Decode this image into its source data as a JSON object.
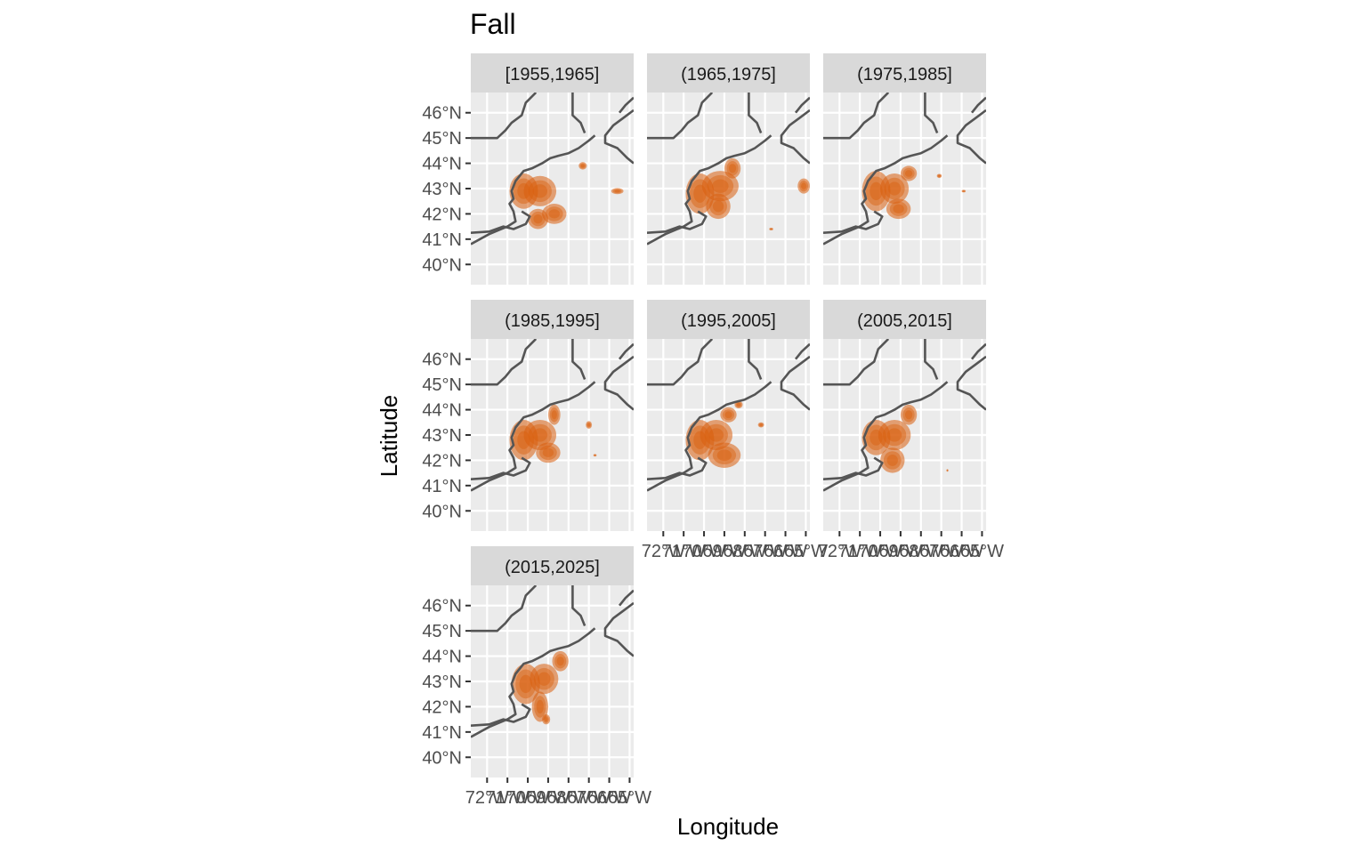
{
  "chart_data": {
    "type": "heatmap",
    "title": "Fall",
    "xlabel": "Longitude",
    "ylabel": "Latitude",
    "x_tick_labels": [
      "72°W",
      "71°W",
      "70°W",
      "69°W",
      "68°W",
      "67°W",
      "66°W",
      "65°W"
    ],
    "y_tick_labels": [
      "46°N",
      "45°N",
      "44°N",
      "43°N",
      "42°N",
      "41°N",
      "40°N"
    ],
    "x_ticks": [
      -72,
      -71,
      -70,
      -69,
      -68,
      -67,
      -66,
      -65
    ],
    "y_ticks": [
      46,
      45,
      44,
      43,
      42,
      41,
      40
    ],
    "xlim": [
      -72.8,
      -64.8
    ],
    "ylim": [
      39.2,
      46.8
    ],
    "grid": true,
    "legend": "none",
    "fill_color": "#d95f0e",
    "panels": [
      {
        "label": "[1955,1965]",
        "blobs": [
          [
            -70.2,
            42.9,
            0.7,
            0.7
          ],
          [
            -69.4,
            42.9,
            0.8,
            0.6
          ],
          [
            -68.7,
            42,
            0.6,
            0.4
          ],
          [
            -69.5,
            41.8,
            0.5,
            0.4
          ],
          [
            -67.3,
            43.9,
            0.2,
            0.15
          ],
          [
            -65.6,
            42.9,
            0.3,
            0.12
          ]
        ]
      },
      {
        "label": "(1965,1975]",
        "blobs": [
          [
            -70.2,
            42.8,
            0.7,
            0.8
          ],
          [
            -69.2,
            43.1,
            0.9,
            0.6
          ],
          [
            -68.6,
            43.8,
            0.4,
            0.4
          ],
          [
            -69.3,
            42.3,
            0.6,
            0.5
          ],
          [
            -65.1,
            43.1,
            0.3,
            0.3
          ],
          [
            -66.7,
            41.4,
            0.1,
            0.05
          ]
        ]
      },
      {
        "label": "(1975,1985]",
        "blobs": [
          [
            -70.2,
            42.9,
            0.7,
            0.8
          ],
          [
            -69.3,
            43,
            0.7,
            0.6
          ],
          [
            -68.6,
            43.6,
            0.4,
            0.3
          ],
          [
            -69.1,
            42.2,
            0.6,
            0.4
          ],
          [
            -67.1,
            43.5,
            0.12,
            0.08
          ],
          [
            -65.9,
            42.9,
            0.1,
            0.05
          ]
        ]
      },
      {
        "label": "(1985,1995]",
        "blobs": [
          [
            -70.2,
            42.8,
            0.7,
            0.8
          ],
          [
            -69.4,
            43,
            0.8,
            0.6
          ],
          [
            -68.7,
            43.8,
            0.3,
            0.4
          ],
          [
            -69,
            42.3,
            0.6,
            0.4
          ],
          [
            -67,
            43.4,
            0.15,
            0.15
          ],
          [
            -66.7,
            42.2,
            0.08,
            0.05
          ]
        ]
      },
      {
        "label": "(1995,2005]",
        "blobs": [
          [
            -70.2,
            42.8,
            0.7,
            0.8
          ],
          [
            -69.4,
            43,
            0.8,
            0.6
          ],
          [
            -68.8,
            43.8,
            0.4,
            0.3
          ],
          [
            -69,
            42.2,
            0.8,
            0.5
          ],
          [
            -67.2,
            43.4,
            0.15,
            0.1
          ],
          [
            -68.3,
            44.2,
            0.2,
            0.15
          ]
        ]
      },
      {
        "label": "(2005,2015]",
        "blobs": [
          [
            -70.2,
            42.9,
            0.7,
            0.7
          ],
          [
            -69.3,
            43,
            0.8,
            0.6
          ],
          [
            -68.6,
            43.8,
            0.4,
            0.4
          ],
          [
            -69.4,
            42,
            0.6,
            0.5
          ],
          [
            -66.7,
            41.6,
            0.05,
            0.05
          ]
        ]
      },
      {
        "label": "(2015,2025]",
        "blobs": [
          [
            -70.1,
            42.9,
            0.7,
            0.8
          ],
          [
            -69.2,
            43.1,
            0.7,
            0.6
          ],
          [
            -68.4,
            43.8,
            0.4,
            0.4
          ],
          [
            -69.4,
            42,
            0.4,
            0.6
          ],
          [
            -69.1,
            41.5,
            0.2,
            0.2
          ]
        ]
      }
    ]
  }
}
